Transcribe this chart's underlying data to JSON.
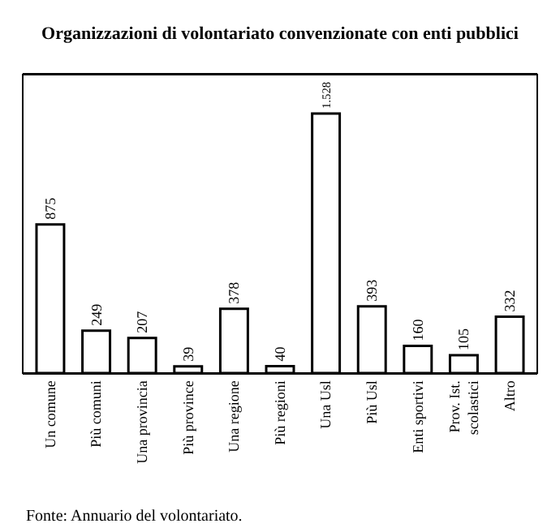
{
  "chart_data": {
    "type": "bar",
    "title": "Organizzazioni di volontariato convenzionate con enti pubblici",
    "categories": [
      "Un comune",
      "Più comuni",
      "Una provincia",
      "Più province",
      "Una regione",
      "Più regioni",
      "Una Usl",
      "Più Usl",
      "Enti sportivi",
      "Prov. Ist.\nscolastici",
      "Altro"
    ],
    "values": [
      875,
      249,
      207,
      39,
      378,
      40,
      1528,
      393,
      160,
      105,
      332
    ],
    "value_labels": [
      "875",
      "249",
      "207",
      "39",
      "378",
      "40",
      "1.528",
      "393",
      "160",
      "105",
      "332"
    ],
    "color": "#ffffff",
    "annotations": [
      "Fonte: Annuario del volontariato."
    ]
  }
}
